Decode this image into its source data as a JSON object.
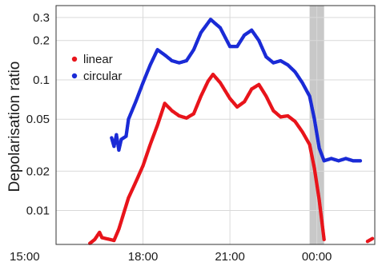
{
  "chart_data": {
    "type": "scatter",
    "title": "",
    "xlabel": "",
    "ylabel": "Depolarisation ratio",
    "y_scale": "log",
    "xlim": [
      "15:00",
      "02:00"
    ],
    "ylim": [
      0.0055,
      0.37
    ],
    "x_ticks": [
      "15:00",
      "18:00",
      "21:00",
      "00:00"
    ],
    "y_ticks": [
      {
        "value": 0.01,
        "label": "0.01"
      },
      {
        "value": 0.02,
        "label": "0.02"
      },
      {
        "value": 0.05,
        "label": "0.05"
      },
      {
        "value": 0.1,
        "label": "0.1"
      },
      {
        "value": 0.2,
        "label": "0.2"
      },
      {
        "value": 0.3,
        "label": "0.3"
      }
    ],
    "grid": true,
    "legend_position": "top-left",
    "shaded_region": {
      "x_start": "23:45",
      "x_end": "00:15",
      "color": "#c8c8c8"
    },
    "series": [
      {
        "name": "linear",
        "color": "#e8141b",
        "points": [
          [
            "16:10",
            0.0056
          ],
          [
            "16:20",
            0.006
          ],
          [
            "16:30",
            0.0068
          ],
          [
            "16:35",
            0.0062
          ],
          [
            "17:00",
            0.0059
          ],
          [
            "17:10",
            0.0072
          ],
          [
            "17:20",
            0.0095
          ],
          [
            "17:30",
            0.0125
          ],
          [
            "17:45",
            0.0165
          ],
          [
            "18:00",
            0.022
          ],
          [
            "18:15",
            0.032
          ],
          [
            "18:30",
            0.045
          ],
          [
            "18:45",
            0.066
          ],
          [
            "19:00",
            0.058
          ],
          [
            "19:15",
            0.053
          ],
          [
            "19:30",
            0.051
          ],
          [
            "19:45",
            0.055
          ],
          [
            "20:00",
            0.075
          ],
          [
            "20:15",
            0.098
          ],
          [
            "20:25",
            0.11
          ],
          [
            "20:40",
            0.095
          ],
          [
            "21:00",
            0.072
          ],
          [
            "21:15",
            0.062
          ],
          [
            "21:30",
            0.068
          ],
          [
            "21:45",
            0.085
          ],
          [
            "22:00",
            0.092
          ],
          [
            "22:15",
            0.075
          ],
          [
            "22:30",
            0.058
          ],
          [
            "22:45",
            0.052
          ],
          [
            "23:00",
            0.053
          ],
          [
            "23:15",
            0.048
          ],
          [
            "23:30",
            0.04
          ],
          [
            "23:45",
            0.032
          ],
          [
            "23:55",
            0.021
          ],
          [
            "00:05",
            0.012
          ],
          [
            "00:15",
            0.006
          ],
          [
            "01:45",
            0.0058
          ],
          [
            "01:55",
            0.0061
          ]
        ]
      },
      {
        "name": "circular",
        "color": "#1a2bd6",
        "points": [
          [
            "16:55",
            0.036
          ],
          [
            "17:00",
            0.031
          ],
          [
            "17:05",
            0.038
          ],
          [
            "17:10",
            0.029
          ],
          [
            "17:15",
            0.035
          ],
          [
            "17:25",
            0.037
          ],
          [
            "17:30",
            0.05
          ],
          [
            "17:45",
            0.068
          ],
          [
            "18:00",
            0.095
          ],
          [
            "18:15",
            0.13
          ],
          [
            "18:30",
            0.17
          ],
          [
            "18:45",
            0.155
          ],
          [
            "19:00",
            0.14
          ],
          [
            "19:15",
            0.135
          ],
          [
            "19:30",
            0.14
          ],
          [
            "19:45",
            0.17
          ],
          [
            "20:00",
            0.23
          ],
          [
            "20:20",
            0.29
          ],
          [
            "20:40",
            0.25
          ],
          [
            "21:00",
            0.18
          ],
          [
            "21:15",
            0.18
          ],
          [
            "21:30",
            0.22
          ],
          [
            "21:45",
            0.24
          ],
          [
            "22:00",
            0.2
          ],
          [
            "22:15",
            0.15
          ],
          [
            "22:30",
            0.135
          ],
          [
            "22:45",
            0.14
          ],
          [
            "23:00",
            0.13
          ],
          [
            "23:15",
            0.115
          ],
          [
            "23:30",
            0.095
          ],
          [
            "23:45",
            0.075
          ],
          [
            "23:55",
            0.05
          ],
          [
            "00:05",
            0.03
          ],
          [
            "00:15",
            0.024
          ],
          [
            "00:30",
            0.025
          ],
          [
            "00:45",
            0.024
          ],
          [
            "01:00",
            0.025
          ],
          [
            "01:15",
            0.024
          ],
          [
            "01:30",
            0.024
          ]
        ]
      }
    ]
  }
}
